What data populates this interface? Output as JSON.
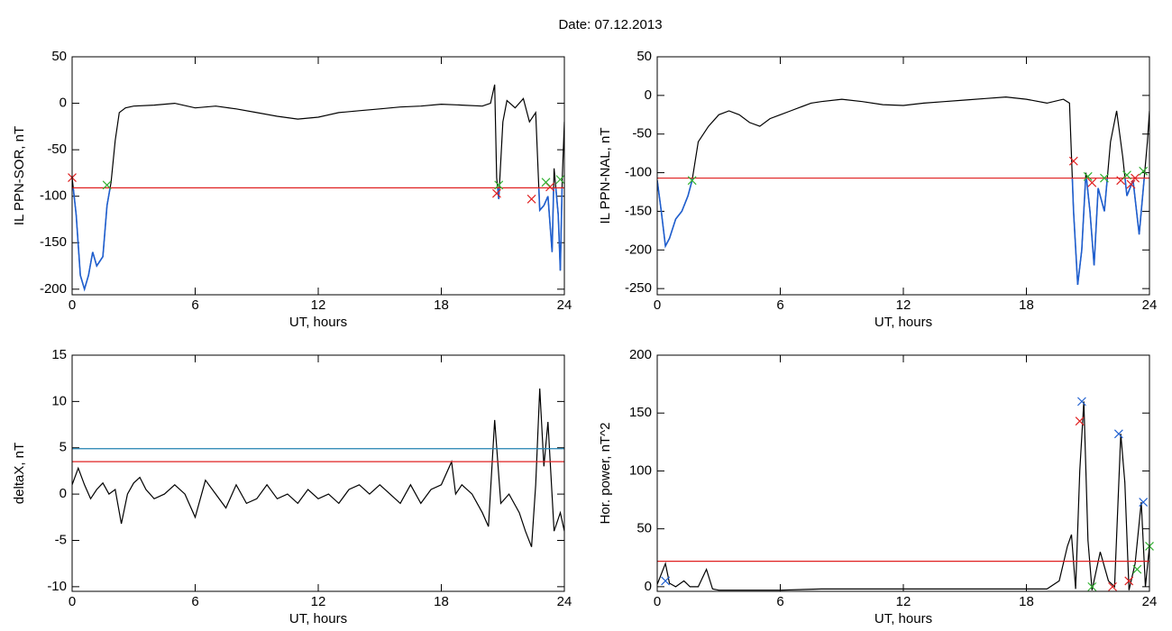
{
  "title": "Date:  07.12.2013",
  "chart_data": [
    {
      "type": "line",
      "ylabel": "IL PPN-SOR, nT",
      "xlabel": "UT, hours",
      "color": "#000000",
      "below_color": "#1f5fd0",
      "x": [
        0,
        0.2,
        0.4,
        0.6,
        0.8,
        1.0,
        1.2,
        1.5,
        1.7,
        1.9,
        2.1,
        2.3,
        2.6,
        3,
        4,
        5,
        6,
        7,
        8,
        9,
        10,
        11,
        12,
        13,
        14,
        15,
        16,
        17,
        18,
        19,
        20,
        20.4,
        20.6,
        20.7,
        20.8,
        21.0,
        21.2,
        21.6,
        22.0,
        22.3,
        22.6,
        22.8,
        23.0,
        23.2,
        23.4,
        23.5,
        23.7,
        23.8,
        23.9,
        24
      ],
      "values": [
        -80,
        -120,
        -185,
        -200,
        -185,
        -160,
        -175,
        -165,
        -110,
        -85,
        -40,
        -10,
        -5,
        -3,
        -2,
        0,
        -5,
        -3,
        -6,
        -10,
        -14,
        -17,
        -15,
        -10,
        -8,
        -6,
        -4,
        -3,
        -1,
        -2,
        -3,
        0,
        20,
        -80,
        -103,
        -20,
        3,
        -5,
        5,
        -20,
        -10,
        -115,
        -110,
        -100,
        -160,
        -70,
        -120,
        -180,
        -80,
        -20
      ],
      "xlim": [
        0,
        24
      ],
      "xticks": [
        0,
        6,
        12,
        18,
        24
      ],
      "ylim": [
        -206,
        50
      ],
      "yticks": [
        50,
        0,
        -50,
        -100,
        -150,
        -200
      ],
      "hlines": [
        {
          "value": -91,
          "color": "#e02020"
        }
      ],
      "markers": [
        {
          "color": "#e02020",
          "x": [
            0,
            20.7,
            22.4,
            23.3
          ],
          "y": [
            -80,
            -97,
            -103,
            -90
          ]
        },
        {
          "color": "#30b030",
          "x": [
            1.7,
            20.8,
            23.1,
            23.8
          ],
          "y": [
            -88,
            -88,
            -85,
            -82
          ]
        }
      ]
    },
    {
      "type": "line",
      "ylabel": "IL PPN-NAL, nT",
      "xlabel": "UT, hours",
      "color": "#000000",
      "below_color": "#1f5fd0",
      "x": [
        0,
        0.2,
        0.4,
        0.6,
        0.9,
        1.2,
        1.5,
        1.7,
        2.0,
        2.5,
        3,
        3.5,
        4,
        4.5,
        5,
        5.5,
        6,
        6.5,
        7,
        7.5,
        8,
        9,
        10,
        11,
        12,
        13,
        14,
        15,
        16,
        17,
        18,
        19,
        19.8,
        20.1,
        20.3,
        20.5,
        20.7,
        20.9,
        21.1,
        21.3,
        21.5,
        21.8,
        22.1,
        22.4,
        22.7,
        22.9,
        23.2,
        23.5,
        23.7,
        23.9,
        24
      ],
      "values": [
        -110,
        -150,
        -195,
        -185,
        -160,
        -150,
        -130,
        -110,
        -60,
        -40,
        -25,
        -20,
        -25,
        -35,
        -40,
        -30,
        -25,
        -20,
        -15,
        -10,
        -8,
        -5,
        -8,
        -12,
        -13,
        -10,
        -8,
        -6,
        -4,
        -2,
        -5,
        -10,
        -5,
        -10,
        -150,
        -245,
        -200,
        -100,
        -150,
        -220,
        -120,
        -150,
        -60,
        -20,
        -80,
        -130,
        -110,
        -180,
        -120,
        -60,
        -20
      ],
      "xlim": [
        0,
        24
      ],
      "xticks": [
        0,
        6,
        12,
        18,
        24
      ],
      "ylim": [
        -258,
        50
      ],
      "yticks": [
        50,
        0,
        -50,
        -100,
        -150,
        -200,
        -250
      ],
      "hlines": [
        {
          "value": -107,
          "color": "#e02020"
        }
      ],
      "markers": [
        {
          "color": "#e02020",
          "x": [
            20.3,
            21.2,
            22.6,
            23.1,
            23.3
          ],
          "y": [
            -85,
            -113,
            -110,
            -115,
            -107
          ]
        },
        {
          "color": "#30b030",
          "x": [
            1.7,
            21.0,
            21.8,
            22.9,
            23.7
          ],
          "y": [
            -110,
            -105,
            -107,
            -103,
            -98
          ]
        }
      ]
    },
    {
      "type": "line",
      "ylabel": "deltaX, nT",
      "xlabel": "UT, hours",
      "color": "#000000",
      "x": [
        0,
        0.3,
        0.6,
        0.9,
        1.2,
        1.5,
        1.8,
        2.1,
        2.4,
        2.7,
        3,
        3.3,
        3.6,
        4,
        4.5,
        5,
        5.5,
        6,
        6.5,
        7,
        7.5,
        8,
        8.5,
        9,
        9.5,
        10,
        10.5,
        11,
        11.5,
        12,
        12.5,
        13,
        13.5,
        14,
        14.5,
        15,
        15.5,
        16,
        16.5,
        17,
        17.5,
        18,
        18.5,
        18.7,
        19,
        19.5,
        20,
        20.3,
        20.6,
        20.9,
        21.3,
        21.8,
        22.1,
        22.4,
        22.6,
        22.8,
        23,
        23.2,
        23.5,
        23.8,
        24
      ],
      "values": [
        1,
        2.8,
        1,
        -0.5,
        0.5,
        1.2,
        0,
        0.5,
        -3.2,
        0,
        1.2,
        1.8,
        0.5,
        -0.5,
        0,
        1,
        0,
        -2.5,
        1.5,
        0,
        -1.5,
        1,
        -1,
        -0.5,
        1,
        -0.5,
        0,
        -1,
        0.5,
        -0.5,
        0,
        -1,
        0.5,
        1,
        0,
        1,
        0,
        -1,
        1,
        -1,
        0.5,
        1,
        3.5,
        0,
        1,
        0,
        -2,
        -3.5,
        8,
        -1,
        0,
        -2,
        -4,
        -5.7,
        1,
        11.4,
        3,
        7.8,
        -4,
        -2,
        -4
      ],
      "xlim": [
        0,
        24
      ],
      "xticks": [
        0,
        6,
        12,
        18,
        24
      ],
      "ylim": [
        -10.5,
        15
      ],
      "yticks": [
        15,
        10,
        5,
        0,
        -5,
        -10
      ],
      "hlines": [
        {
          "value": 4.9,
          "color": "#2080b0"
        },
        {
          "value": 3.5,
          "color": "#e02020"
        }
      ],
      "markers": []
    },
    {
      "type": "line",
      "ylabel": "Hor. power, nT^2",
      "xlabel": "UT, hours",
      "color": "#000000",
      "x": [
        0,
        0.4,
        0.6,
        0.9,
        1.3,
        1.6,
        2,
        2.4,
        2.7,
        3,
        6,
        8,
        12,
        15,
        18,
        19,
        19.6,
        20,
        20.2,
        20.4,
        20.6,
        20.8,
        21.0,
        21.2,
        21.6,
        22.0,
        22.3,
        22.6,
        22.8,
        23.0,
        23.3,
        23.6,
        23.8,
        24
      ],
      "values": [
        2,
        20,
        3,
        0,
        5,
        0,
        0,
        15,
        -2,
        -3,
        -3,
        -2,
        -2,
        -2,
        -2,
        -2,
        5,
        35,
        45,
        -2,
        100,
        160,
        40,
        -3,
        30,
        5,
        0,
        132,
        90,
        -3,
        20,
        73,
        0,
        35
      ],
      "xlim": [
        0,
        24
      ],
      "xticks": [
        0,
        6,
        12,
        18,
        24
      ],
      "ylim": [
        -4,
        200
      ],
      "yticks": [
        200,
        150,
        100,
        50,
        0
      ],
      "hlines": [
        {
          "value": 22,
          "color": "#e02020"
        }
      ],
      "markers": [
        {
          "color": "#2060d0",
          "x": [
            0.4,
            20.7,
            22.5,
            23.7
          ],
          "y": [
            5,
            160,
            132,
            73
          ]
        },
        {
          "color": "#e02020",
          "x": [
            20.6,
            22.2,
            23.0
          ],
          "y": [
            143,
            0,
            5
          ]
        },
        {
          "color": "#30b030",
          "x": [
            21.2,
            23.4,
            24
          ],
          "y": [
            0,
            15,
            35
          ]
        }
      ]
    }
  ]
}
